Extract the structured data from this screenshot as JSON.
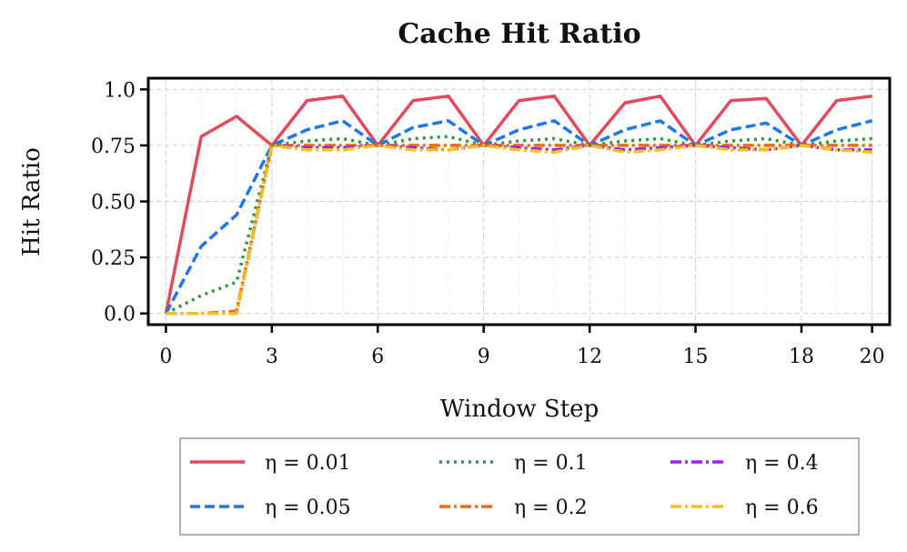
{
  "chart_data": {
    "type": "line",
    "title": "Cache Hit Ratio",
    "xlabel": "Window Step",
    "ylabel": "Hit Ratio",
    "xlim": [
      -0.5,
      20.5
    ],
    "ylim": [
      -0.05,
      1.05
    ],
    "xticks": [
      0,
      3,
      6,
      9,
      12,
      15,
      18,
      20
    ],
    "xtick_labels": [
      "0",
      "3",
      "6",
      "9",
      "12",
      "15",
      "18",
      "20"
    ],
    "yticks": [
      0.0,
      0.25,
      0.5,
      0.75,
      1.0
    ],
    "ytick_labels": [
      "0.0",
      "0.25",
      "0.50",
      "0.75",
      "1.0"
    ],
    "grid": true,
    "legend_position": "below",
    "x": [
      0,
      1,
      2,
      3,
      4,
      5,
      6,
      7,
      8,
      9,
      10,
      11,
      12,
      13,
      14,
      15,
      16,
      17,
      18,
      19,
      20
    ],
    "series": [
      {
        "name": "η = 0.01",
        "color": "#e5495a",
        "dash": "solid",
        "values": [
          0.0,
          0.79,
          0.88,
          0.75,
          0.95,
          0.97,
          0.75,
          0.95,
          0.97,
          0.75,
          0.95,
          0.97,
          0.75,
          0.94,
          0.97,
          0.75,
          0.95,
          0.96,
          0.75,
          0.95,
          0.97
        ]
      },
      {
        "name": "η = 0.05",
        "color": "#1f77f0",
        "dash": "dashed",
        "values": [
          0.0,
          0.3,
          0.44,
          0.75,
          0.82,
          0.86,
          0.75,
          0.83,
          0.86,
          0.75,
          0.82,
          0.86,
          0.75,
          0.82,
          0.86,
          0.75,
          0.82,
          0.85,
          0.75,
          0.82,
          0.86
        ]
      },
      {
        "name": "η = 0.1",
        "color": "#2e9a38",
        "dash": "dotted",
        "values": [
          0.0,
          0.08,
          0.14,
          0.75,
          0.77,
          0.78,
          0.75,
          0.78,
          0.79,
          0.75,
          0.77,
          0.78,
          0.75,
          0.77,
          0.78,
          0.75,
          0.77,
          0.78,
          0.75,
          0.77,
          0.78
        ]
      },
      {
        "name": "η = 0.2",
        "color": "#f26b0f",
        "dash": "dashdot",
        "values": [
          0.0,
          0.0,
          0.01,
          0.75,
          0.75,
          0.75,
          0.75,
          0.75,
          0.75,
          0.75,
          0.75,
          0.75,
          0.75,
          0.75,
          0.75,
          0.75,
          0.75,
          0.75,
          0.75,
          0.75,
          0.75
        ]
      },
      {
        "name": "η = 0.4",
        "color": "#a020f0",
        "dash": "dashdot",
        "values": [
          0.0,
          0.0,
          0.0,
          0.75,
          0.74,
          0.74,
          0.75,
          0.74,
          0.73,
          0.75,
          0.74,
          0.73,
          0.75,
          0.73,
          0.74,
          0.75,
          0.74,
          0.73,
          0.75,
          0.73,
          0.73
        ]
      },
      {
        "name": "η = 0.6",
        "color": "#f2c01a",
        "dash": "dashdot",
        "values": [
          0.0,
          0.0,
          0.0,
          0.75,
          0.73,
          0.73,
          0.75,
          0.73,
          0.73,
          0.75,
          0.73,
          0.72,
          0.75,
          0.72,
          0.73,
          0.75,
          0.73,
          0.73,
          0.75,
          0.73,
          0.72
        ]
      }
    ]
  }
}
